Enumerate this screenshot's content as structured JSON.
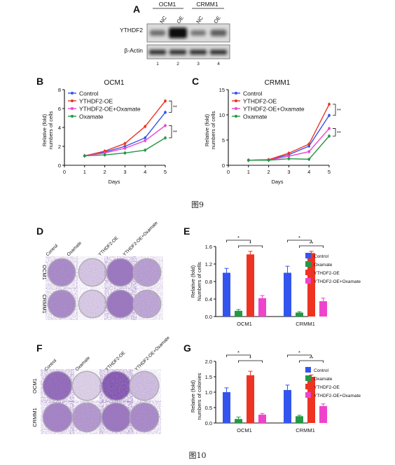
{
  "figure9": {
    "caption": "图9",
    "panel_a": {
      "label": "A",
      "cell_lines": [
        "OCM1",
        "CRMM1"
      ],
      "lanes": [
        "NC",
        "OE",
        "NC",
        "OE"
      ],
      "lane_numbers": [
        "1",
        "2",
        "3",
        "4"
      ],
      "proteins": [
        "YTHDF2",
        "β-Actin"
      ],
      "ythdf2_band_intensity": [
        0.35,
        1.0,
        0.3,
        0.45
      ],
      "actin_band_intensity": [
        0.8,
        0.8,
        0.8,
        0.8
      ]
    }
  },
  "figure10": {
    "caption": "图10",
    "panel_d": {
      "label": "D",
      "columns": [
        "Control",
        "Oxamate",
        "YTHDF2-OE",
        "YTHDF2-OE+Oxamate"
      ],
      "rows": [
        "OCM1",
        "CRMM1"
      ],
      "stain_density": [
        [
          0.55,
          0.15,
          0.7,
          0.4
        ],
        [
          0.55,
          0.12,
          0.7,
          0.35
        ]
      ]
    },
    "panel_f": {
      "label": "F",
      "columns": [
        "Control",
        "Oxamate",
        "YTHDF2-OE",
        "YTHDF2-OE+Oxamate"
      ],
      "rows": [
        "OCM1",
        "CRMM1"
      ],
      "stain_density": [
        [
          0.8,
          0.08,
          0.95,
          0.2
        ],
        [
          0.6,
          0.45,
          0.7,
          0.55
        ]
      ]
    }
  },
  "chart_data": [
    {
      "type": "line",
      "panel": "B",
      "title": "OCM1",
      "xlabel": "Days",
      "ylabel": [
        "Relative (fold)",
        "numbers of cells"
      ],
      "x": [
        1,
        2,
        3,
        4,
        5
      ],
      "xlim": [
        0,
        5
      ],
      "ylim": [
        0,
        8
      ],
      "xticks": [
        0,
        1,
        2,
        3,
        4,
        5
      ],
      "yticks": [
        0,
        2,
        4,
        6,
        8
      ],
      "legend_position": "top-left",
      "series": [
        {
          "name": "Control",
          "color": "#3355ee",
          "values": [
            1.0,
            1.4,
            2.0,
            2.9,
            5.6
          ]
        },
        {
          "name": "YTHDF2-OE",
          "color": "#ee3322",
          "values": [
            1.0,
            1.5,
            2.3,
            4.1,
            6.8
          ]
        },
        {
          "name": "YTHDF2-OE+Oxamate",
          "color": "#ee44cc",
          "values": [
            1.0,
            1.3,
            1.8,
            2.6,
            4.2
          ]
        },
        {
          "name": "Oxamate",
          "color": "#229944",
          "values": [
            1.0,
            1.1,
            1.3,
            1.6,
            2.9
          ]
        }
      ],
      "significance": [
        "**",
        "**"
      ]
    },
    {
      "type": "line",
      "panel": "C",
      "title": "CRMM1",
      "xlabel": "Days",
      "ylabel": [
        "Relative (fold)",
        "numbers of cells"
      ],
      "x": [
        1,
        2,
        3,
        4,
        5
      ],
      "xlim": [
        0,
        5
      ],
      "ylim": [
        0,
        15
      ],
      "xticks": [
        0,
        1,
        2,
        3,
        4,
        5
      ],
      "yticks": [
        0,
        5,
        10,
        15
      ],
      "legend_position": "top-left",
      "series": [
        {
          "name": "Control",
          "color": "#3355ee",
          "values": [
            1.0,
            1.1,
            2.1,
            3.8,
            9.9
          ]
        },
        {
          "name": "YTHDF2-OE",
          "color": "#ee3322",
          "values": [
            1.0,
            1.1,
            2.4,
            4.2,
            12.1
          ]
        },
        {
          "name": "YTHDF2-OE+Oxamate",
          "color": "#ee44cc",
          "values": [
            1.0,
            1.0,
            1.8,
            2.7,
            7.3
          ]
        },
        {
          "name": "Oxamate",
          "color": "#229944",
          "values": [
            1.0,
            1.0,
            1.3,
            1.2,
            5.8
          ]
        }
      ],
      "significance": [
        "**",
        "**"
      ]
    },
    {
      "type": "bar",
      "panel": "E",
      "categories": [
        "OCM1",
        "CRMM1"
      ],
      "ylabel": [
        "Relative (fold)",
        "Numbers of cells"
      ],
      "ylim": [
        0,
        1.6
      ],
      "yticks": [
        "0.0",
        "0.4",
        "0.8",
        "1.2",
        "1.6"
      ],
      "legend_position": "top-right",
      "series": [
        {
          "name": "Control",
          "color": "#3355ee",
          "values": [
            1.0,
            1.0
          ],
          "errors": [
            0.1,
            0.15
          ]
        },
        {
          "name": "Oxamate",
          "color": "#229944",
          "values": [
            0.13,
            0.09
          ],
          "errors": [
            0.03,
            0.02
          ]
        },
        {
          "name": "YTHDF2-OE",
          "color": "#ee3322",
          "values": [
            1.42,
            1.45
          ],
          "errors": [
            0.07,
            0.04
          ]
        },
        {
          "name": "YTHDF2-OE+Oxamate",
          "color": "#ee44cc",
          "values": [
            0.42,
            0.35
          ],
          "errors": [
            0.06,
            0.07
          ]
        }
      ],
      "significance": [
        {
          "group": "OCM1",
          "from": "Control",
          "to": "YTHDF2-OE",
          "label": "*"
        },
        {
          "group": "OCM1",
          "from": "Oxamate",
          "to": "YTHDF2-OE+Oxamate",
          "label": "*"
        },
        {
          "group": "CRMM1",
          "from": "Control",
          "to": "YTHDF2-OE",
          "label": "*"
        },
        {
          "group": "CRMM1",
          "from": "Oxamate",
          "to": "YTHDF2-OE+Oxamate",
          "label": "**"
        }
      ]
    },
    {
      "type": "bar",
      "panel": "G",
      "categories": [
        "OCM1",
        "CRMM1"
      ],
      "ylabel": [
        "Relative (fold)",
        "numbers of colonies"
      ],
      "ylim": [
        0,
        2.0
      ],
      "yticks": [
        "0.0",
        "0.5",
        "1.0",
        "1.5",
        "2.0"
      ],
      "legend_position": "top-right",
      "series": [
        {
          "name": "Control",
          "color": "#3355ee",
          "values": [
            1.0,
            1.07
          ],
          "errors": [
            0.14,
            0.16
          ]
        },
        {
          "name": "Oxamate",
          "color": "#229944",
          "values": [
            0.13,
            0.22
          ],
          "errors": [
            0.06,
            0.03
          ]
        },
        {
          "name": "YTHDF2-OE",
          "color": "#ee3322",
          "values": [
            1.55,
            1.5
          ],
          "errors": [
            0.13,
            0.06
          ]
        },
        {
          "name": "YTHDF2-OE+Oxamate",
          "color": "#ee44cc",
          "values": [
            0.27,
            0.55
          ],
          "errors": [
            0.04,
            0.07
          ]
        }
      ],
      "significance": [
        {
          "group": "OCM1",
          "from": "Control",
          "to": "YTHDF2-OE",
          "label": "*"
        },
        {
          "group": "OCM1",
          "from": "Oxamate",
          "to": "YTHDF2-OE+Oxamate",
          "label": "*"
        },
        {
          "group": "CRMM1",
          "from": "Control",
          "to": "YTHDF2-OE",
          "label": "*"
        },
        {
          "group": "CRMM1",
          "from": "Oxamate",
          "to": "YTHDF2-OE+Oxamate",
          "label": "**"
        }
      ]
    }
  ]
}
